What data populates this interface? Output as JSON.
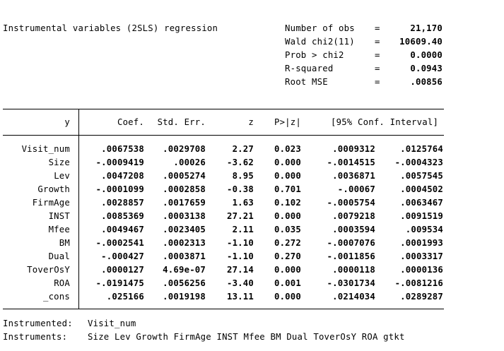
{
  "title": "Instrumental variables (2SLS) regression",
  "stats": [
    {
      "label": "Number of obs",
      "eq": "=",
      "value": "21,170"
    },
    {
      "label": "Wald chi2(11)",
      "eq": "=",
      "value": "10609.40"
    },
    {
      "label": "Prob > chi2",
      "eq": "=",
      "value": "0.0000"
    },
    {
      "label": "R-squared",
      "eq": "=",
      "value": "0.0943"
    },
    {
      "label": "Root MSE",
      "eq": "=",
      "value": ".00856"
    }
  ],
  "table": {
    "headers": {
      "y": "y",
      "coef": "Coef.",
      "se": "Std. Err.",
      "z": "z",
      "p": "P>|z|",
      "ci": "[95% Conf. Interval]"
    },
    "rows": [
      {
        "var": "Visit_num",
        "coef": ".0067538",
        "se": ".0029708",
        "z": "2.27",
        "p": "0.023",
        "lo": ".0009312",
        "hi": ".0125764"
      },
      {
        "var": "Size",
        "coef": "-.0009419",
        "se": ".00026",
        "z": "-3.62",
        "p": "0.000",
        "lo": "-.0014515",
        "hi": "-.0004323"
      },
      {
        "var": "Lev",
        "coef": ".0047208",
        "se": ".0005274",
        "z": "8.95",
        "p": "0.000",
        "lo": ".0036871",
        "hi": ".0057545"
      },
      {
        "var": "Growth",
        "coef": "-.0001099",
        "se": ".0002858",
        "z": "-0.38",
        "p": "0.701",
        "lo": "-.00067",
        "hi": ".0004502"
      },
      {
        "var": "FirmAge",
        "coef": ".0028857",
        "se": ".0017659",
        "z": "1.63",
        "p": "0.102",
        "lo": "-.0005754",
        "hi": ".0063467"
      },
      {
        "var": "INST",
        "coef": ".0085369",
        "se": ".0003138",
        "z": "27.21",
        "p": "0.000",
        "lo": ".0079218",
        "hi": ".0091519"
      },
      {
        "var": "Mfee",
        "coef": ".0049467",
        "se": ".0023405",
        "z": "2.11",
        "p": "0.035",
        "lo": ".0003594",
        "hi": ".009534"
      },
      {
        "var": "BM",
        "coef": "-.0002541",
        "se": ".0002313",
        "z": "-1.10",
        "p": "0.272",
        "lo": "-.0007076",
        "hi": ".0001993"
      },
      {
        "var": "Dual",
        "coef": "-.000427",
        "se": ".0003871",
        "z": "-1.10",
        "p": "0.270",
        "lo": "-.0011856",
        "hi": ".0003317"
      },
      {
        "var": "ToverOsY",
        "coef": ".0000127",
        "se": "4.69e-07",
        "z": "27.14",
        "p": "0.000",
        "lo": ".0000118",
        "hi": ".0000136"
      },
      {
        "var": "ROA",
        "coef": "-.0191475",
        "se": ".0056256",
        "z": "-3.40",
        "p": "0.001",
        "lo": "-.0301734",
        "hi": "-.0081216"
      },
      {
        "var": "_cons",
        "coef": ".025166",
        "se": ".0019198",
        "z": "13.11",
        "p": "0.000",
        "lo": ".0214034",
        "hi": ".0289287"
      }
    ]
  },
  "footer": {
    "instrumented_label": "Instrumented:",
    "instrumented_value": "Visit_num",
    "instruments_label": "Instruments:",
    "instruments_value": "Size Lev Growth FirmAge INST Mfee BM Dual ToverOsY ROA gtkt"
  }
}
